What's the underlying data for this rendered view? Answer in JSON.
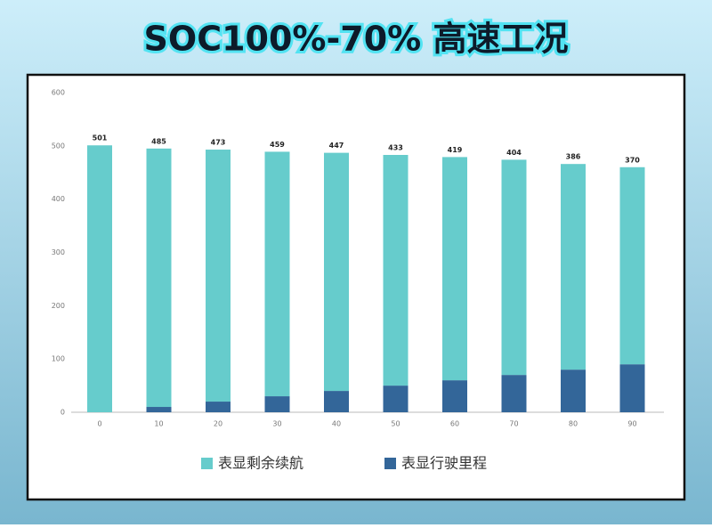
{
  "chart_data": {
    "type": "stacked-bar",
    "title": "SOC100%-70% 高速工况",
    "categories": [
      "0",
      "10",
      "20",
      "30",
      "40",
      "50",
      "60",
      "70",
      "80",
      "90"
    ],
    "series": [
      {
        "name": "表显剩余续航",
        "color": "#66cccc",
        "values": [
          501,
          485,
          473,
          459,
          447,
          433,
          419,
          404,
          386,
          370
        ]
      },
      {
        "name": "表显行驶里程",
        "color": "#336699",
        "values": [
          0,
          10,
          20,
          30,
          40,
          50,
          60,
          70,
          80,
          90
        ]
      }
    ],
    "ylim": [
      0,
      600
    ],
    "yticks": [
      0,
      100,
      200,
      300,
      400,
      500,
      600
    ],
    "grid": false,
    "legend": "bottom"
  }
}
